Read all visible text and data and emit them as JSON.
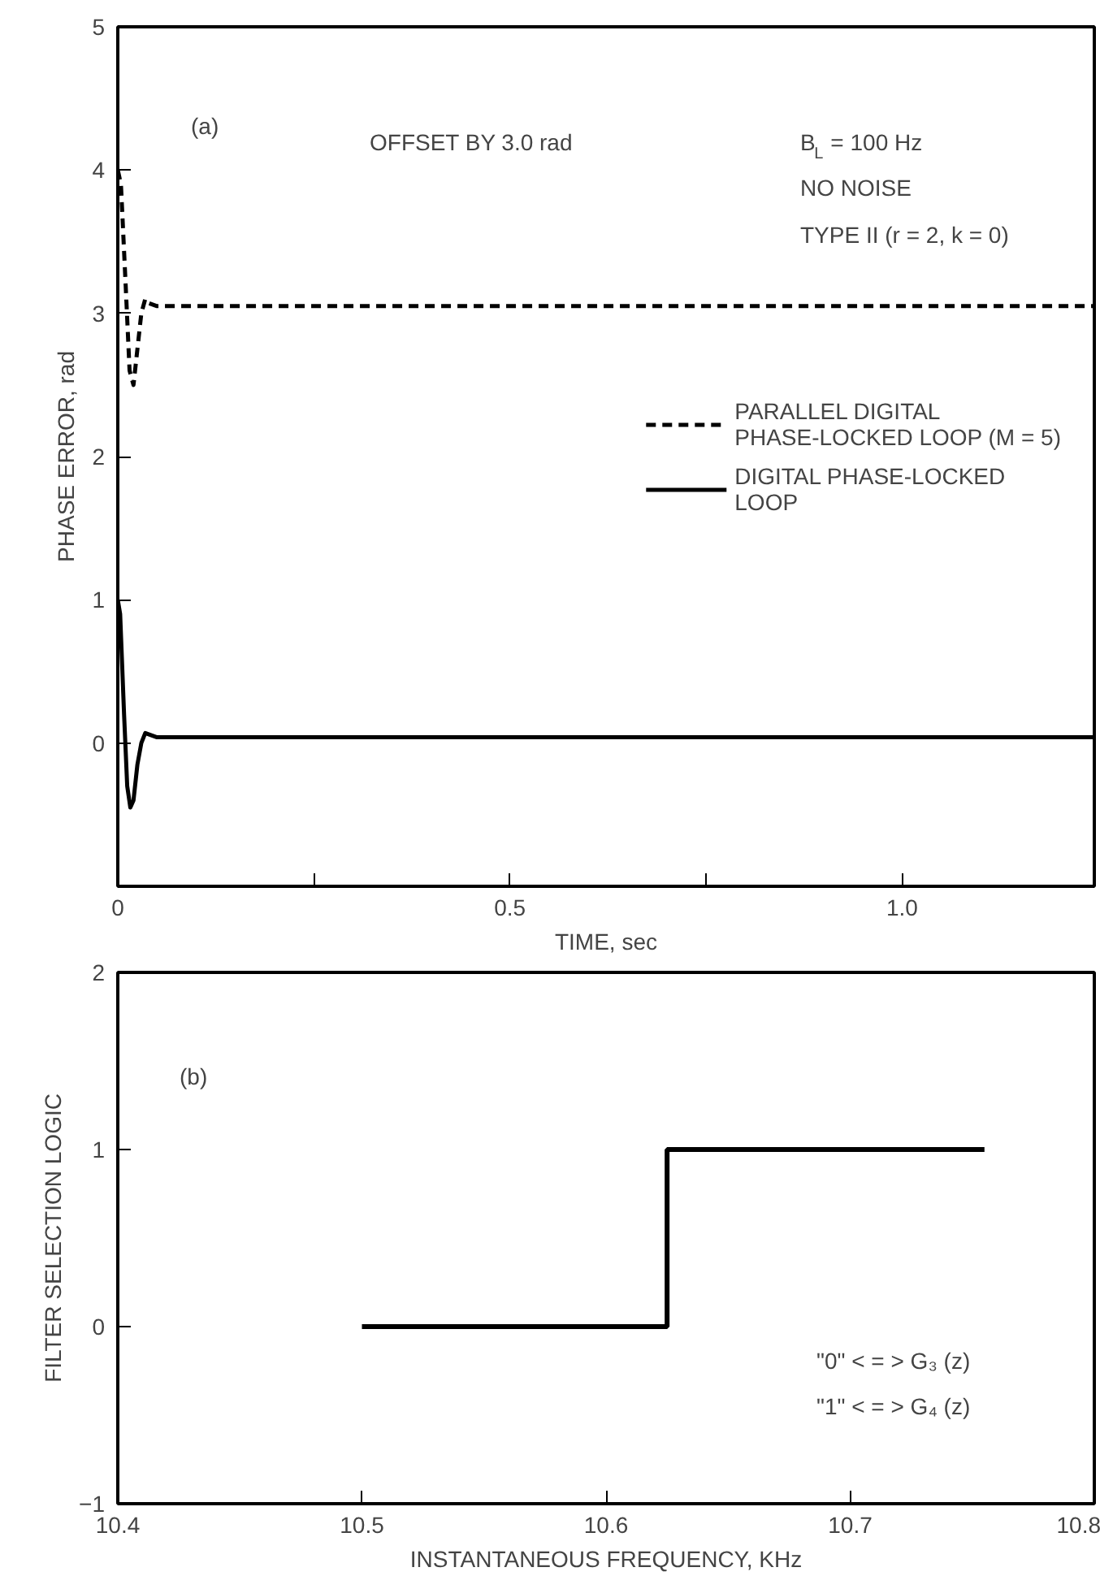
{
  "chart_data": [
    {
      "type": "line",
      "xlabel": "TIME, sec",
      "ylabel": "PHASE ERROR, rad",
      "xlim": [
        0,
        1.245
      ],
      "ylim": [
        -1,
        5
      ],
      "xticks": [
        0,
        {
          "value": 0.25,
          "label": null
        },
        0.5,
        {
          "value": 0.75,
          "label": null
        },
        {
          "value": 1.0,
          "label": "1.0"
        }
      ],
      "yticks": [
        {
          "value": -1,
          "label": null
        },
        0,
        1,
        2,
        3,
        4,
        5
      ],
      "grid": false,
      "legend": "right",
      "annotations": [
        "(a)",
        "OFFSET BY 3.0 rad",
        "B$_{L}$ = 100 Hz",
        "NO NOISE",
        "TYPE II (r = 2, k = 0)"
      ],
      "series": [
        {
          "name": "PARALLEL DIGITAL\nPHASE-LOCKED LOOP (M = 5)",
          "color": "#000000",
          "line_style": "dashed",
          "x": [
            0,
            0.004,
            0.01,
            0.015,
            0.02,
            0.025,
            0.03,
            0.035,
            0.04,
            0.05,
            1.245
          ],
          "values": [
            4,
            3.9,
            3.2,
            2.6,
            2.5,
            2.75,
            3.0,
            3.1,
            3.07,
            3.05,
            3.05
          ]
        },
        {
          "name": "DIGITAL PHASE-LOCKED\nLOOP",
          "color": "#000000",
          "line_style": "solid",
          "x": [
            0,
            0.003,
            0.008,
            0.012,
            0.016,
            0.02,
            0.025,
            0.03,
            0.035,
            0.04,
            0.05,
            0.08,
            1.245
          ],
          "values": [
            1,
            0.9,
            0.2,
            -0.3,
            -0.45,
            -0.4,
            -0.15,
            0.0,
            0.07,
            0.06,
            0.04,
            0.04,
            0.04
          ]
        }
      ]
    },
    {
      "type": "step",
      "xlabel": "INSTANTANEOUS FREQUENCY, KHz",
      "ylabel": "FILTER SELECTION LOGIC",
      "xlim": [
        10.4,
        10.8
      ],
      "ylim": [
        -1,
        2
      ],
      "xticks": [
        10.4,
        10.5,
        10.6,
        10.7,
        10.8
      ],
      "yticks": [
        {
          "value": -1,
          "label": "−1"
        },
        0,
        1,
        2
      ],
      "grid": false,
      "annotations": [
        "(b)",
        "\"0\" < = > G₃ (z)",
        "\"1\" < = > G₄ (z)"
      ],
      "series": [
        {
          "color": "#000000",
          "x": [
            10.5,
            10.625,
            10.755
          ],
          "values": [
            0,
            1,
            1
          ]
        }
      ]
    }
  ]
}
